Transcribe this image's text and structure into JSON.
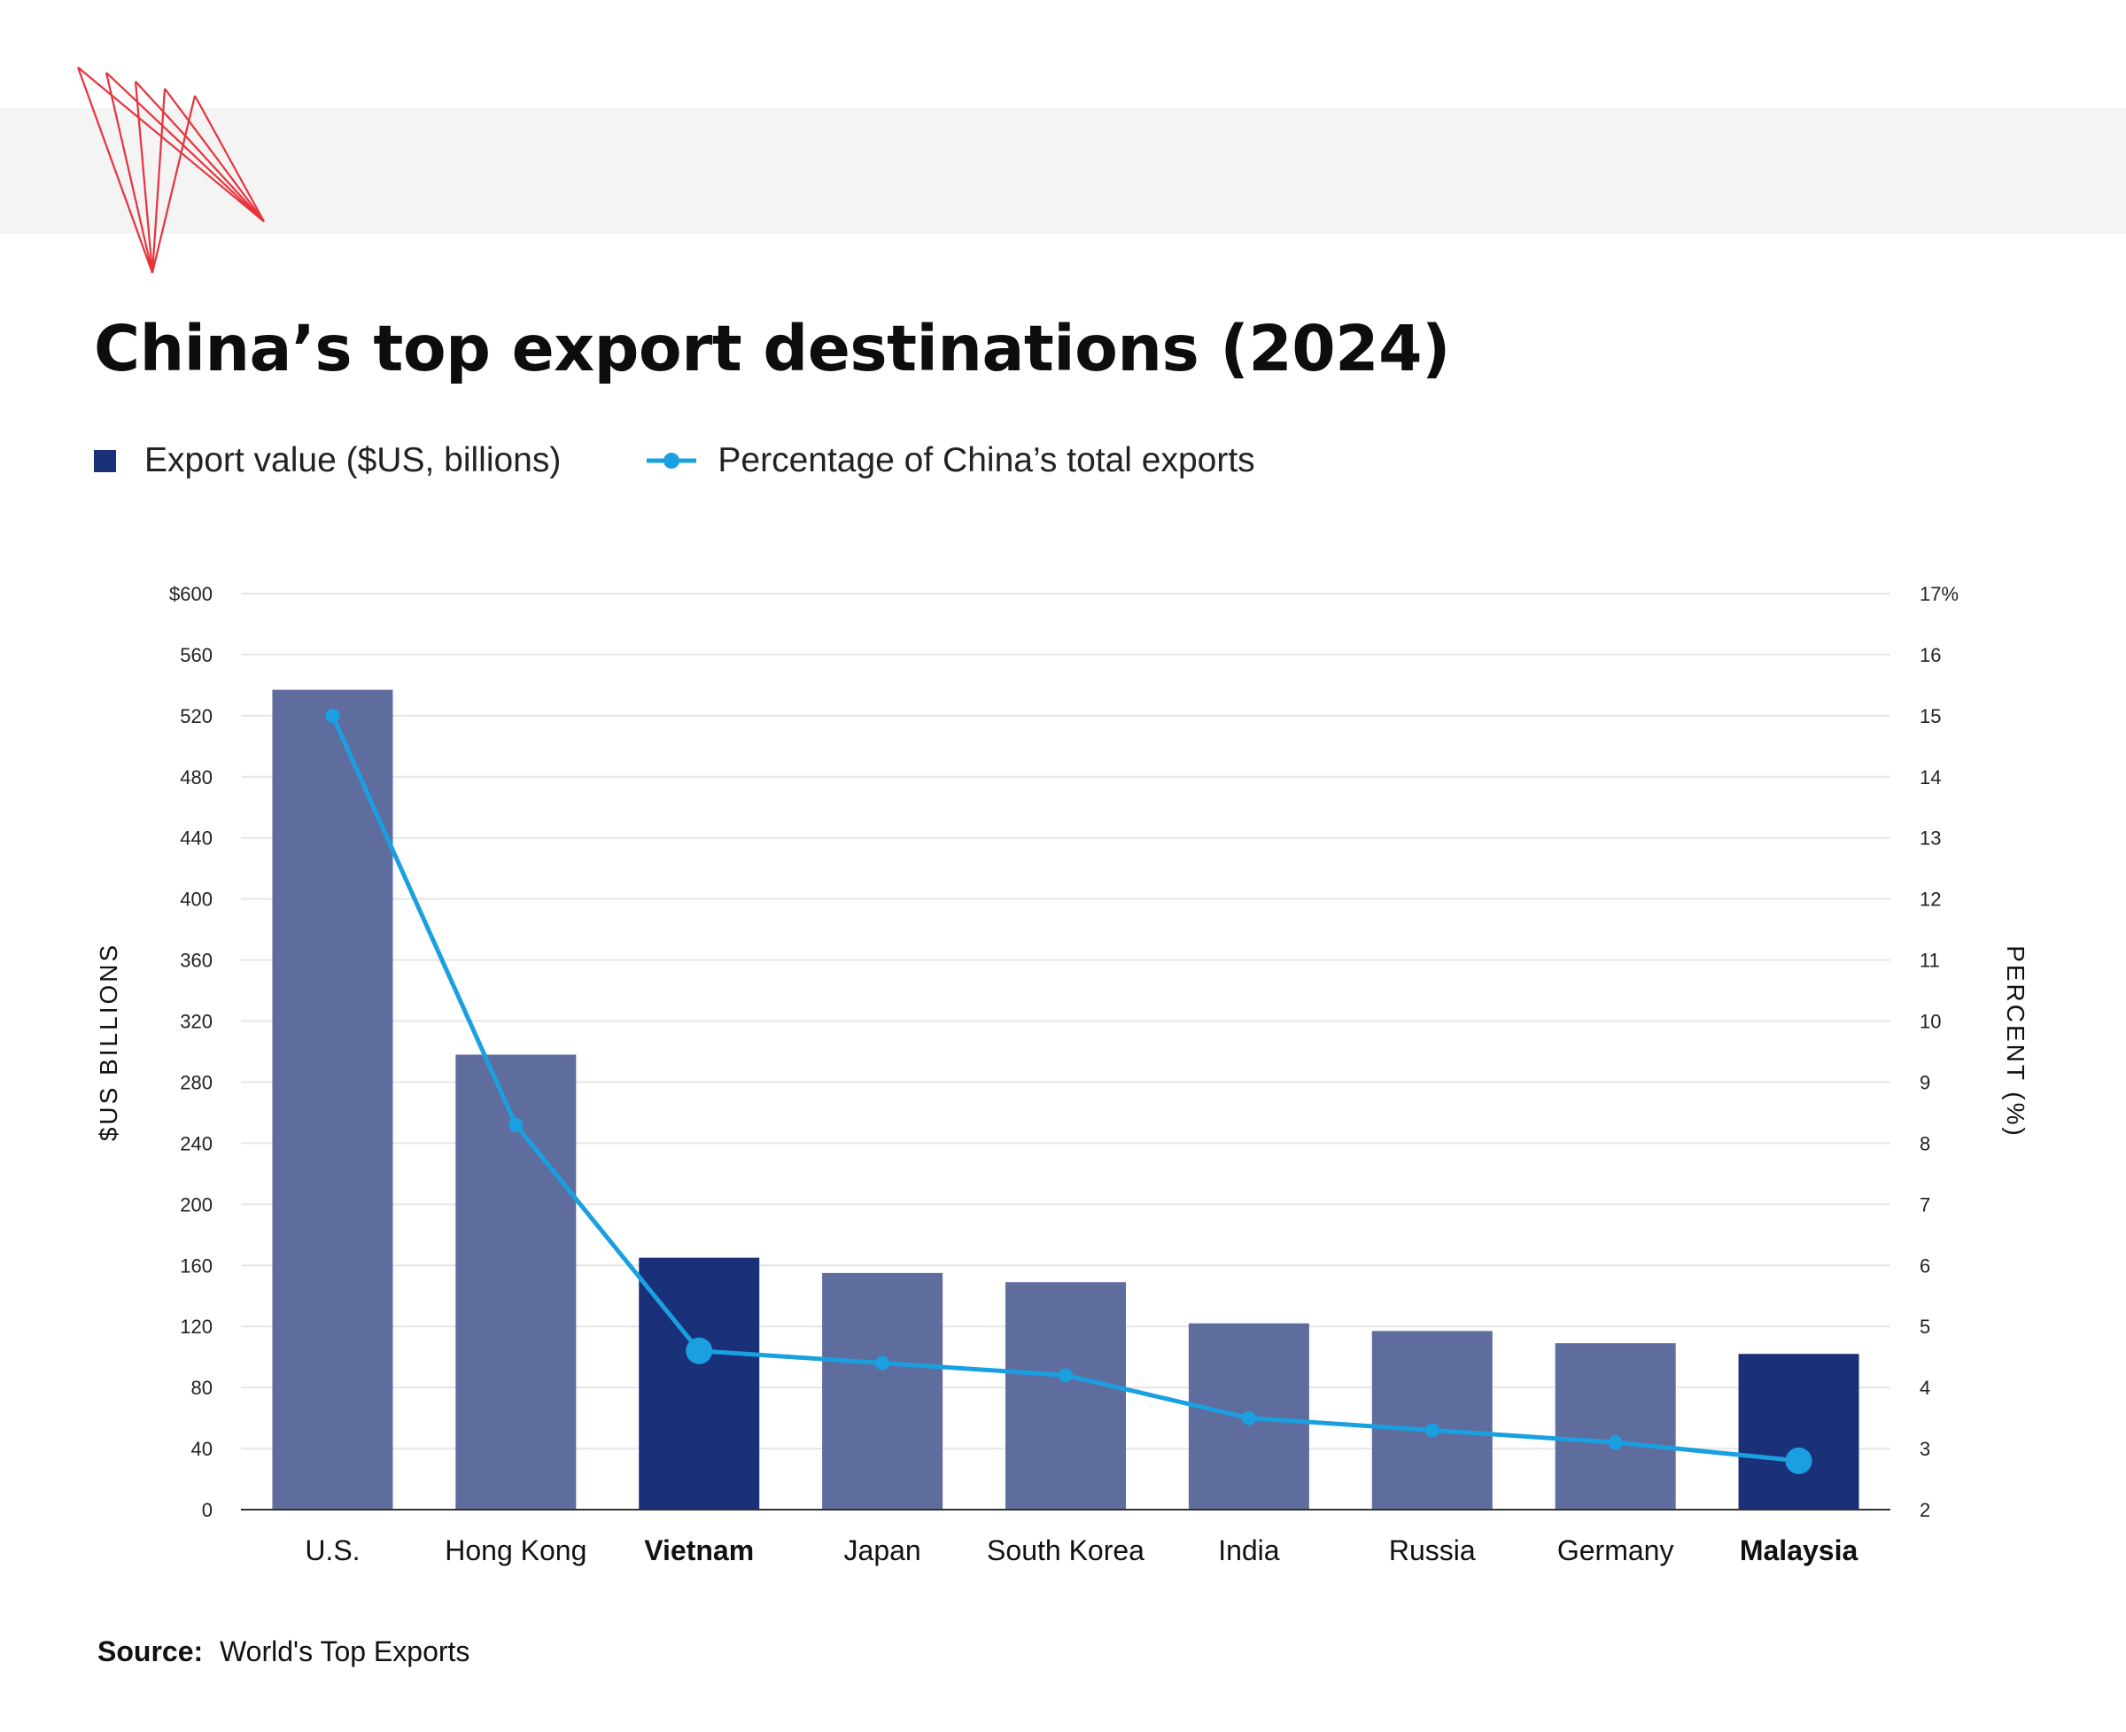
{
  "colors": {
    "bar": "#5e6c9e",
    "bar_highlight": "#1a3079",
    "line": "#1aa0e0",
    "grid": "#e6e6e6",
    "axis": "#333333",
    "logo": "#e8323c"
  },
  "logo": {
    "icon": "red-line-fan-logo-icon"
  },
  "legend": {
    "bar_label": "Export value ($US, billions)",
    "line_label": "Percentage of China’s total exports"
  },
  "chart_data": {
    "type": "bar",
    "title": "China’s top export destinations (2024)",
    "categories": [
      "U.S.",
      "Hong Kong",
      "Vietnam",
      "Japan",
      "South Korea",
      "India",
      "Russia",
      "Germany",
      "Malaysia"
    ],
    "highlighted_categories": [
      "Vietnam",
      "Malaysia"
    ],
    "series": [
      {
        "name": "Export value ($US, billions)",
        "type": "bar",
        "axis": "left",
        "values": [
          537,
          298,
          165,
          155,
          149,
          122,
          117,
          109,
          102
        ]
      },
      {
        "name": "Percentage of China’s total exports",
        "type": "line",
        "axis": "right",
        "values": [
          15.0,
          8.3,
          4.6,
          4.4,
          4.2,
          3.5,
          3.3,
          3.1,
          2.8
        ],
        "emphasized_points": [
          "Vietnam",
          "Malaysia"
        ]
      }
    ],
    "y_left": {
      "label": "$US BILLIONS",
      "ylim": [
        0,
        600
      ],
      "ticks": [
        0,
        40,
        80,
        120,
        160,
        200,
        240,
        280,
        320,
        360,
        400,
        440,
        480,
        520,
        560,
        600
      ],
      "tick_labels": [
        "0",
        "40",
        "80",
        "120",
        "160",
        "200",
        "240",
        "280",
        "320",
        "360",
        "400",
        "440",
        "480",
        "520",
        "560",
        "$600"
      ]
    },
    "y_right": {
      "label": "PERCENT (%)",
      "ylim": [
        2,
        17
      ],
      "ticks": [
        2,
        3,
        4,
        5,
        6,
        7,
        8,
        9,
        10,
        11,
        12,
        13,
        14,
        15,
        16,
        17
      ],
      "tick_labels": [
        "2",
        "3",
        "4",
        "5",
        "6",
        "7",
        "8",
        "9",
        "10",
        "11",
        "12",
        "13",
        "14",
        "15",
        "16",
        "17%"
      ]
    },
    "grid": true,
    "legend": "top-left"
  },
  "source": {
    "label": "Source:",
    "text": "World's Top Exports"
  }
}
